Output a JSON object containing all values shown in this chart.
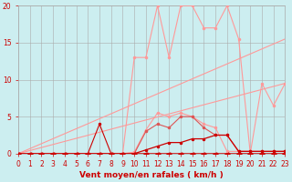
{
  "xlabel": "Vent moyen/en rafales ( km/h )",
  "bg_color": "#cceef0",
  "grid_color": "#aaaaaa",
  "x_values": [
    0,
    1,
    2,
    3,
    4,
    5,
    6,
    7,
    8,
    9,
    10,
    11,
    12,
    13,
    14,
    15,
    16,
    17,
    18,
    19,
    20,
    21,
    22,
    23
  ],
  "line_rafales_y": [
    0,
    0,
    0,
    0,
    0,
    0,
    0,
    0,
    0,
    0,
    13,
    13,
    20,
    13,
    20,
    20,
    17,
    17,
    20,
    15.5,
    0,
    9.5,
    6.5,
    9.5
  ],
  "line_moyen_y": [
    0,
    0,
    0,
    0,
    0,
    0,
    0,
    0,
    0,
    0,
    0.2,
    3.2,
    5.5,
    5.0,
    5.5,
    5.0,
    4.0,
    3.5,
    0.3,
    0.3,
    0.3,
    0.3,
    0.3,
    0.3
  ],
  "line_dark1_y": [
    0,
    0,
    0,
    0,
    0,
    0,
    0,
    0,
    0,
    0,
    0,
    3.0,
    4.0,
    3.5,
    5.0,
    5.0,
    3.5,
    2.5,
    2.5,
    0.3,
    0.3,
    0.3,
    0.3,
    0.3
  ],
  "line_dark2_y": [
    0,
    0,
    0,
    0,
    0,
    0,
    0,
    0,
    0,
    0,
    0,
    0.5,
    1.0,
    1.5,
    1.5,
    2.0,
    2.0,
    2.5,
    2.5,
    0.3,
    0.3,
    0.3,
    0.3,
    0.3
  ],
  "line_triangle_y": [
    0,
    0,
    0,
    0,
    0,
    0,
    0,
    4,
    0,
    0,
    0,
    0,
    0,
    0,
    0,
    0,
    0,
    0,
    0,
    0,
    0,
    0,
    0,
    0
  ],
  "line_bottom_y": [
    0,
    0,
    0,
    0,
    0,
    0,
    0,
    0,
    0,
    0,
    0,
    0,
    0,
    0,
    0,
    0,
    0,
    0,
    0,
    0,
    0,
    0,
    0,
    0
  ],
  "diag_upper_end": 15.5,
  "diag_lower_end": 9.5,
  "color_dark_red": "#cc0000",
  "color_medium_red": "#dd5555",
  "color_light_pink": "#ff9999",
  "ylim": [
    0,
    20
  ],
  "xlim": [
    0,
    23
  ],
  "yticks": [
    0,
    5,
    10,
    15,
    20
  ],
  "xticks": [
    0,
    1,
    2,
    3,
    4,
    5,
    6,
    7,
    8,
    9,
    10,
    11,
    12,
    13,
    14,
    15,
    16,
    17,
    18,
    19,
    20,
    21,
    22,
    23
  ]
}
